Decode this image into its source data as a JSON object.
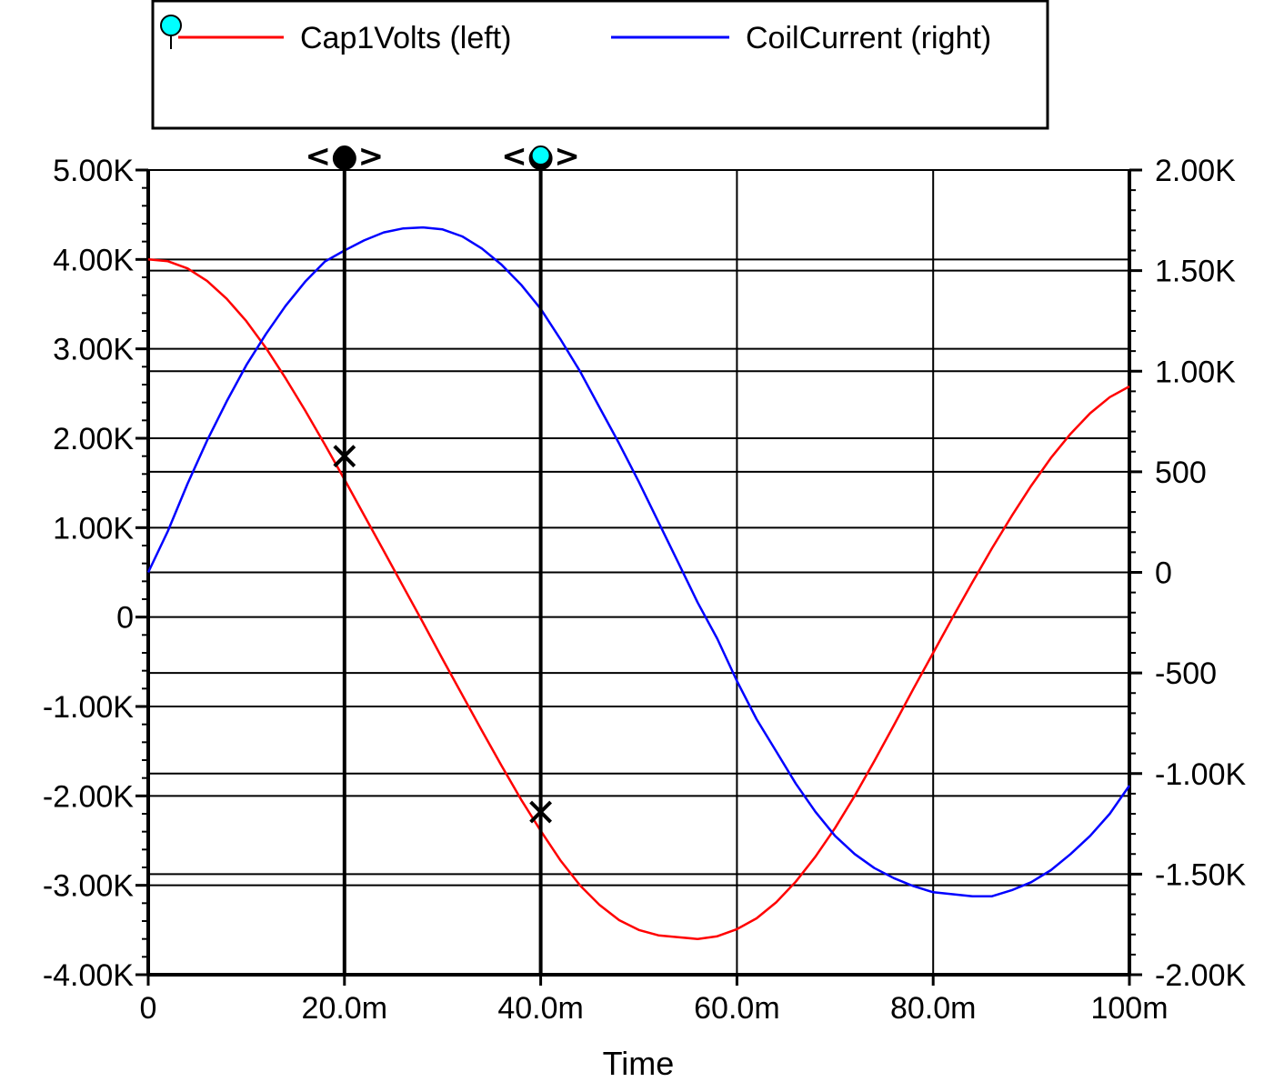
{
  "chart_data": {
    "type": "line",
    "title": "",
    "xlabel": "Time",
    "xlim": [
      0,
      0.1
    ],
    "x_ticks": [
      {
        "value": 0,
        "label": "0"
      },
      {
        "value": 0.02,
        "label": "20.0m"
      },
      {
        "value": 0.04,
        "label": "40.0m"
      },
      {
        "value": 0.06,
        "label": "60.0m"
      },
      {
        "value": 0.08,
        "label": "80.0m"
      },
      {
        "value": 0.1,
        "label": "100m"
      }
    ],
    "y_left": {
      "ylim": [
        -4000,
        5000
      ],
      "ticks": [
        {
          "value": 5000,
          "label": "5.00K"
        },
        {
          "value": 4000,
          "label": "4.00K"
        },
        {
          "value": 3000,
          "label": "3.00K"
        },
        {
          "value": 2000,
          "label": "2.00K"
        },
        {
          "value": 1000,
          "label": "1.00K"
        },
        {
          "value": 0,
          "label": "0"
        },
        {
          "value": -1000,
          "label": "-1.00K"
        },
        {
          "value": -2000,
          "label": "-2.00K"
        },
        {
          "value": -3000,
          "label": "-3.00K"
        },
        {
          "value": -4000,
          "label": "-4.00K"
        }
      ]
    },
    "y_right": {
      "ylim": [
        -2000,
        2000
      ],
      "ticks": [
        {
          "value": 2000,
          "label": "2.00K"
        },
        {
          "value": 1500,
          "label": "1.50K"
        },
        {
          "value": 1000,
          "label": "1.00K"
        },
        {
          "value": 500,
          "label": "500"
        },
        {
          "value": 0,
          "label": "0"
        },
        {
          "value": -500,
          "label": "-500"
        },
        {
          "value": -1000,
          "label": "-1.00K"
        },
        {
          "value": -1500,
          "label": "-1.50K"
        },
        {
          "value": -2000,
          "label": "-2.00K"
        }
      ]
    },
    "grid": true,
    "legend": "top",
    "series": [
      {
        "name": "Cap1Volts (left)",
        "axis": "left",
        "color": "#ff0000",
        "x": [
          0,
          0.002,
          0.004,
          0.006,
          0.008,
          0.01,
          0.012,
          0.014,
          0.016,
          0.018,
          0.02,
          0.022,
          0.024,
          0.026,
          0.028,
          0.03,
          0.032,
          0.034,
          0.036,
          0.038,
          0.04,
          0.042,
          0.044,
          0.046,
          0.048,
          0.05,
          0.052,
          0.054,
          0.056,
          0.058,
          0.06,
          0.062,
          0.064,
          0.066,
          0.068,
          0.07,
          0.072,
          0.074,
          0.076,
          0.078,
          0.08,
          0.082,
          0.084,
          0.086,
          0.088,
          0.09,
          0.092,
          0.094,
          0.096,
          0.098,
          0.1
        ],
        "y": [
          4000,
          3980,
          3900,
          3760,
          3560,
          3310,
          3010,
          2670,
          2310,
          1930,
          1540,
          1140,
          740,
          340,
          -60,
          -470,
          -870,
          -1270,
          -1660,
          -2040,
          -2390,
          -2720,
          -3000,
          -3220,
          -3390,
          -3500,
          -3560,
          -3580,
          -3600,
          -3570,
          -3490,
          -3370,
          -3190,
          -2960,
          -2680,
          -2360,
          -2000,
          -1610,
          -1210,
          -800,
          -400,
          0,
          390,
          770,
          1130,
          1470,
          1780,
          2050,
          2280,
          2460,
          2580
        ]
      },
      {
        "name": "CoilCurrent (right)",
        "axis": "right",
        "color": "#0000ff",
        "x": [
          0,
          0.002,
          0.004,
          0.006,
          0.008,
          0.01,
          0.012,
          0.014,
          0.016,
          0.018,
          0.02,
          0.022,
          0.024,
          0.026,
          0.028,
          0.03,
          0.032,
          0.034,
          0.036,
          0.038,
          0.04,
          0.042,
          0.044,
          0.046,
          0.048,
          0.05,
          0.052,
          0.054,
          0.056,
          0.058,
          0.06,
          0.062,
          0.064,
          0.066,
          0.068,
          0.07,
          0.072,
          0.074,
          0.076,
          0.078,
          0.08,
          0.082,
          0.084,
          0.086,
          0.088,
          0.09,
          0.092,
          0.094,
          0.096,
          0.098,
          0.1
        ],
        "y": [
          0,
          205,
          440,
          655,
          850,
          1030,
          1185,
          1325,
          1445,
          1545,
          1600,
          1650,
          1690,
          1710,
          1715,
          1705,
          1670,
          1610,
          1530,
          1430,
          1310,
          1160,
          1000,
          820,
          640,
          450,
          250,
          50,
          -150,
          -330,
          -540,
          -730,
          -890,
          -1050,
          -1190,
          -1310,
          -1400,
          -1470,
          -1520,
          -1560,
          -1590,
          -1600,
          -1610,
          -1610,
          -1580,
          -1540,
          -1480,
          -1400,
          -1310,
          -1200,
          -1060
        ]
      }
    ],
    "cursors": [
      {
        "x": 0.02,
        "handle": "<●>",
        "marker_value": 1800,
        "color": "#000000"
      },
      {
        "x": 0.04,
        "handle": "<●>",
        "marker_value": -2180,
        "color": "#00ffff"
      }
    ]
  }
}
